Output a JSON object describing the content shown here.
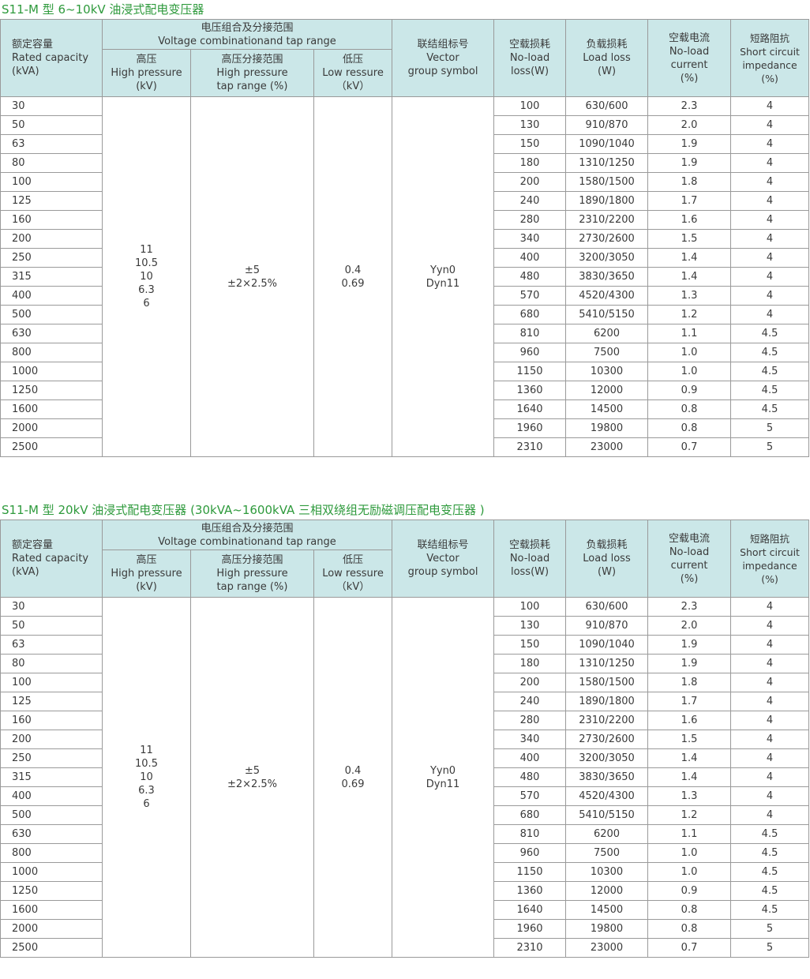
{
  "header": {
    "capacity": [
      "额定容量",
      "Rated capacity",
      "(kVA)"
    ],
    "voltage_group": [
      "电压组合及分接范围",
      "Voltage combinationand tap range"
    ],
    "hv": [
      "高压",
      "High pressure",
      "(kV)"
    ],
    "tap": [
      "高压分接范围",
      "High pressure",
      "tap range (%)"
    ],
    "vector": [
      "联结组标号",
      "Vector",
      "group symbol"
    ],
    "noload_loss": [
      "空载损耗",
      "No-load",
      "loss(W)"
    ],
    "load_loss": [
      "负载损耗",
      "Load loss",
      "(W)"
    ],
    "noload_current": [
      "空载电流",
      "No-load",
      "current",
      "(%)"
    ],
    "impedance": [
      "短路阻抗",
      "Short circuit",
      "impedance",
      "(%)"
    ]
  },
  "tables": [
    {
      "title": "S11-M 型 6~10kV 油浸式配电变压器",
      "lv_header": [
        "低压",
        "Low ressure",
        "（kV）"
      ]
    },
    {
      "title": "S11-M 型 20kV 油浸式配电变压器 (30kVA~1600kVA 三相双绕组无励磁调压配电变压器 )",
      "lv_header": [
        "低压",
        "Low ressure",
        "（kV）"
      ]
    }
  ],
  "merged": {
    "hv": [
      "11",
      "10.5",
      "10",
      "6.3",
      "6"
    ],
    "tap": [
      "±5",
      "±2×2.5%"
    ],
    "lv": [
      "0.4",
      "0.69"
    ],
    "vector": [
      "Yyn0",
      "Dyn11"
    ]
  },
  "rows": [
    {
      "cap": "30",
      "nll": "100",
      "ll": "630/600",
      "nlc": "2.3",
      "imp": "4"
    },
    {
      "cap": "50",
      "nll": "130",
      "ll": "910/870",
      "nlc": "2.0",
      "imp": "4"
    },
    {
      "cap": "63",
      "nll": "150",
      "ll": "1090/1040",
      "nlc": "1.9",
      "imp": "4"
    },
    {
      "cap": "80",
      "nll": "180",
      "ll": "1310/1250",
      "nlc": "1.9",
      "imp": "4"
    },
    {
      "cap": "100",
      "nll": "200",
      "ll": "1580/1500",
      "nlc": "1.8",
      "imp": "4"
    },
    {
      "cap": "125",
      "nll": "240",
      "ll": "1890/1800",
      "nlc": "1.7",
      "imp": "4"
    },
    {
      "cap": "160",
      "nll": "280",
      "ll": "2310/2200",
      "nlc": "1.6",
      "imp": "4"
    },
    {
      "cap": "200",
      "nll": "340",
      "ll": "2730/2600",
      "nlc": "1.5",
      "imp": "4"
    },
    {
      "cap": "250",
      "nll": "400",
      "ll": "3200/3050",
      "nlc": "1.4",
      "imp": "4"
    },
    {
      "cap": "315",
      "nll": "480",
      "ll": "3830/3650",
      "nlc": "1.4",
      "imp": "4"
    },
    {
      "cap": "400",
      "nll": "570",
      "ll": "4520/4300",
      "nlc": "1.3",
      "imp": "4"
    },
    {
      "cap": "500",
      "nll": "680",
      "ll": "5410/5150",
      "nlc": "1.2",
      "imp": "4"
    },
    {
      "cap": "630",
      "nll": "810",
      "ll": "6200",
      "nlc": "1.1",
      "imp": "4.5"
    },
    {
      "cap": "800",
      "nll": "960",
      "ll": "7500",
      "nlc": "1.0",
      "imp": "4.5"
    },
    {
      "cap": "1000",
      "nll": "1150",
      "ll": "10300",
      "nlc": "1.0",
      "imp": "4.5"
    },
    {
      "cap": "1250",
      "nll": "1360",
      "ll": "12000",
      "nlc": "0.9",
      "imp": "4.5"
    },
    {
      "cap": "1600",
      "nll": "1640",
      "ll": "14500",
      "nlc": "0.8",
      "imp": "4.5"
    },
    {
      "cap": "2000",
      "nll": "1960",
      "ll": "19800",
      "nlc": "0.8",
      "imp": "5"
    },
    {
      "cap": "2500",
      "nll": "2310",
      "ll": "23000",
      "nlc": "0.7",
      "imp": "5"
    }
  ]
}
